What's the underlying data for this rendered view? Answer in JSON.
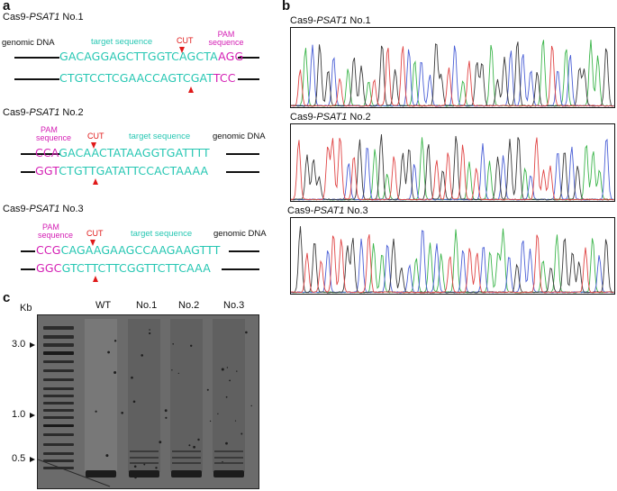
{
  "panels": {
    "a": "a",
    "b": "b",
    "c": "c"
  },
  "a": {
    "no1": {
      "title_prefix": "Cas9-",
      "gene": "PSAT1",
      "title_suffix": " No.1",
      "genomic_dna": "genomic DNA",
      "target_sequence": "target sequence",
      "cut": "CUT",
      "pam_line1": "PAM",
      "pam_line2": "sequence",
      "top_cyan": "GACAGGAGCTTGGTCAGCTA",
      "top_mag": "AGG",
      "bot_cyan": "CTGTCCTCGAACCAGTCGAT",
      "bot_mag": "TCC"
    },
    "no2": {
      "title_prefix": "Cas9-",
      "gene": "PSAT1",
      "title_suffix": " No.2",
      "pam_line1": "PAM",
      "pam_line2": "sequence",
      "cut": "CUT",
      "target_sequence": "target sequence",
      "genomic_dna": "genomic DNA",
      "top_mag": "CCA",
      "top_cyan": "GACAACTATAAGGTGATTTT",
      "bot_mag": "GGT",
      "bot_cyan": "CTGTTGATATTCCACTAAAA"
    },
    "no3": {
      "title_prefix": "Cas9-",
      "gene": "PSAT1",
      "title_suffix": " No.3",
      "pam_line1": "PAM",
      "pam_line2": "sequence",
      "cut": "CUT",
      "target_sequence": "target sequence",
      "genomic_dna": "genomic DNA",
      "top_mag": "CCG",
      "top_cyan": "CAGAAGAAGCCAAGAAGTTT",
      "bot_mag": "GGC",
      "bot_cyan": "GTCTTCTTCGGTTCTTCAAA"
    }
  },
  "b": {
    "titles": [
      {
        "prefix": "Cas9-",
        "gene": "PSAT1",
        "suffix": " No.1"
      },
      {
        "prefix": "Cas9-",
        "gene": "PSAT1",
        "suffix": " No.2"
      },
      {
        "prefix": "Cas9-",
        "gene": "PSAT1",
        "suffix": " No.3"
      }
    ],
    "trace_colors": {
      "A": "#3bb54a",
      "C": "#4a5fd6",
      "G": "#3a3a3a",
      "T": "#e04545"
    }
  },
  "c": {
    "kb": "Kb",
    "lanes": [
      "WT",
      "No.1",
      "No.2",
      "No.3"
    ],
    "markers": [
      "3.0",
      "1.0",
      "0.5"
    ]
  }
}
